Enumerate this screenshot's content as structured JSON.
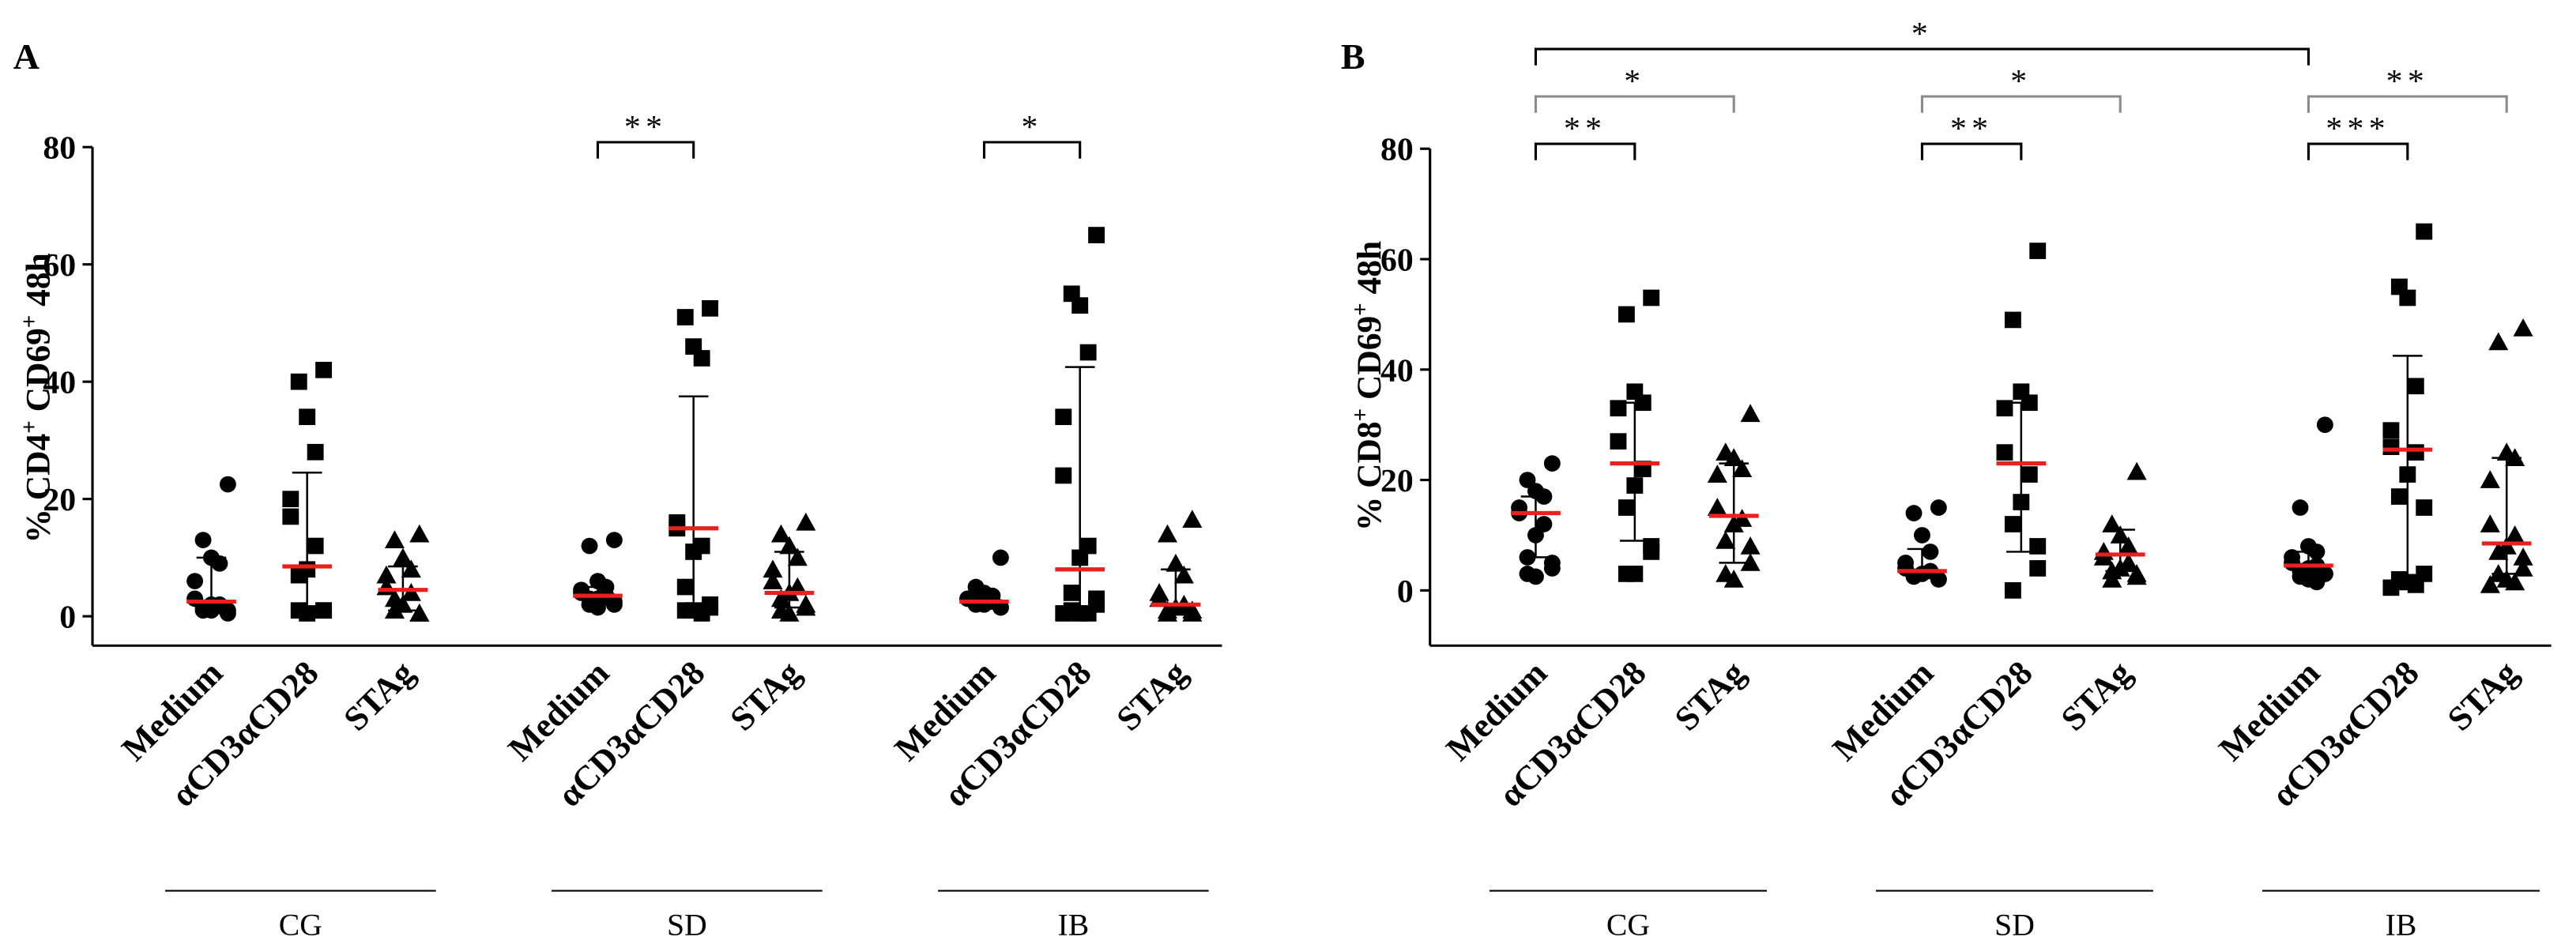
{
  "chart_data": [
    {
      "type": "dotplot",
      "panel": "A",
      "y_label": [
        "% CD4",
        "+",
        " CD69",
        "+",
        " 48h"
      ],
      "ylim": [
        -5,
        80
      ],
      "yticks": [
        0,
        20,
        40,
        60,
        80
      ],
      "categories": [
        "Medium",
        "αCD3αCD28",
        "STAg"
      ],
      "markers": [
        "circle",
        "square",
        "triangle"
      ],
      "point_color": "#000000",
      "median_color": "#e8211f",
      "groups": [
        {
          "name": "CG",
          "values": [
            {
              "points": [
                22.5,
                13,
                10,
                9,
                6,
                3,
                2,
                1,
                1,
                1,
                0.5,
                1.5,
                2
              ],
              "median": 2.5,
              "error": [
                0.5,
                10
              ]
            },
            {
              "points": [
                42,
                40,
                34,
                28,
                20,
                17,
                12,
                8,
                7,
                1,
                1,
                1,
                0.5
              ],
              "median": 8.5,
              "error": [
                1,
                24.5
              ]
            },
            {
              "points": [
                14,
                13,
                10,
                8,
                7,
                5,
                4,
                2,
                1,
                0.5,
                0.5,
                3
              ],
              "median": 4.5,
              "error": [
                1,
                8.5
              ]
            }
          ]
        },
        {
          "name": "SD",
          "values": [
            {
              "points": [
                13,
                12,
                6,
                5,
                4.5,
                4,
                3.5,
                3,
                3,
                2.5,
                2,
                2,
                1.5
              ],
              "median": 3.5,
              "error": [
                2,
                5
              ]
            },
            {
              "points": [
                52.5,
                51,
                46,
                44,
                16,
                15,
                12,
                11,
                5,
                2,
                1.5,
                1,
                1,
                0.5
              ],
              "median": 15,
              "error": [
                1,
                37.5
              ]
            },
            {
              "points": [
                16,
                14,
                12,
                10,
                8,
                6,
                5,
                4,
                3,
                2,
                1.5,
                1,
                0.5
              ],
              "median": 4,
              "error": [
                1.5,
                11
              ]
            }
          ]
        },
        {
          "name": "IB",
          "values": [
            {
              "points": [
                10,
                5,
                4,
                3.5,
                3,
                3,
                2.5,
                2,
                2,
                1.5,
                1.5
              ],
              "median": 2.5,
              "error": [
                1.5,
                3.5
              ]
            },
            {
              "points": [
                65,
                55,
                53,
                45,
                34,
                24,
                12,
                10,
                4,
                3,
                2,
                1,
                0.5,
                0.5,
                0.5
              ],
              "median": 8,
              "error": [
                0.5,
                42.5
              ]
            },
            {
              "points": [
                16.5,
                14,
                9,
                7,
                4,
                3,
                2,
                1.5,
                1,
                1,
                0.5,
                0.5
              ],
              "median": 2,
              "error": [
                0.5,
                8
              ]
            }
          ]
        }
      ],
      "brackets": [
        {
          "from": [
            1,
            0
          ],
          "to": [
            1,
            1
          ],
          "label": "**",
          "color": "#000000"
        },
        {
          "from": [
            2,
            0
          ],
          "to": [
            2,
            1
          ],
          "label": "*",
          "color": "#000000"
        }
      ]
    },
    {
      "type": "dotplot",
      "panel": "B",
      "y_label": [
        "% CD8",
        "+",
        " CD69",
        "+",
        " 48h"
      ],
      "ylim": [
        -10,
        80
      ],
      "yticks": [
        0,
        20,
        40,
        60,
        80
      ],
      "categories": [
        "Medium",
        "αCD3αCD28",
        "STAg"
      ],
      "markers": [
        "circle",
        "square",
        "triangle"
      ],
      "point_color": "#000000",
      "median_color": "#e8211f",
      "groups": [
        {
          "name": "CG",
          "values": [
            {
              "points": [
                23,
                20,
                18,
                17,
                15,
                14,
                12,
                10,
                6,
                5,
                4,
                3,
                2.5
              ],
              "median": 14,
              "error": [
                6,
                17
              ]
            },
            {
              "points": [
                53,
                50,
                36,
                34,
                33,
                27,
                22,
                19,
                15,
                8,
                7,
                3,
                3
              ],
              "median": 23,
              "error": [
                9,
                34
              ]
            },
            {
              "points": [
                32,
                25,
                24,
                22,
                21,
                15,
                13,
                12,
                9,
                8,
                5,
                3,
                2
              ],
              "median": 13.5,
              "error": [
                5,
                23
              ]
            }
          ]
        },
        {
          "name": "SD",
          "values": [
            {
              "points": [
                15,
                14,
                10,
                7,
                5,
                4,
                3.5,
                3,
                2.5,
                2,
                2
              ],
              "median": 3.5,
              "error": [
                2.5,
                7.5
              ]
            },
            {
              "points": [
                61.5,
                49,
                36,
                34,
                33,
                25,
                21,
                16,
                12,
                8,
                4,
                0
              ],
              "median": 23,
              "error": [
                7,
                34
              ]
            },
            {
              "points": [
                21.5,
                12,
                10,
                8,
                7,
                6,
                5,
                4,
                3.5,
                3,
                2.5,
                2
              ],
              "median": 6.5,
              "error": [
                3.5,
                11
              ]
            }
          ]
        },
        {
          "name": "IB",
          "values": [
            {
              "points": [
                30,
                15,
                8,
                7,
                6,
                5,
                4.5,
                4,
                3.5,
                3,
                3,
                2.5,
                2,
                1.5
              ],
              "median": 4.5,
              "error": [
                3,
                7
              ]
            },
            {
              "points": [
                65,
                55,
                53,
                37,
                29,
                26,
                25,
                21,
                17,
                15,
                3,
                2,
                1.5,
                1,
                0.5
              ],
              "median": 25.5,
              "error": [
                2.5,
                42.5
              ]
            },
            {
              "points": [
                47.5,
                45,
                25,
                24,
                20,
                12,
                10,
                8,
                7,
                6,
                4,
                3,
                2,
                1.5,
                1
              ],
              "median": 8.5,
              "error": [
                3,
                24
              ]
            }
          ]
        }
      ],
      "brackets": [
        {
          "from": [
            0,
            0
          ],
          "to": [
            0,
            1
          ],
          "label": "**",
          "color": "#000000"
        },
        {
          "from": [
            0,
            0
          ],
          "to": [
            0,
            2
          ],
          "label": "*",
          "color": "#8c8c8c"
        },
        {
          "from": [
            1,
            0
          ],
          "to": [
            1,
            1
          ],
          "label": "**",
          "color": "#000000"
        },
        {
          "from": [
            1,
            0
          ],
          "to": [
            1,
            2
          ],
          "label": "*",
          "color": "#8c8c8c"
        },
        {
          "from": [
            2,
            0
          ],
          "to": [
            2,
            1
          ],
          "label": "***",
          "color": "#000000"
        },
        {
          "from": [
            2,
            0
          ],
          "to": [
            2,
            2
          ],
          "label": "**",
          "color": "#8c8c8c"
        },
        {
          "from": [
            0,
            0
          ],
          "to": [
            2,
            0
          ],
          "label": "*",
          "color": "#000000"
        }
      ]
    }
  ]
}
